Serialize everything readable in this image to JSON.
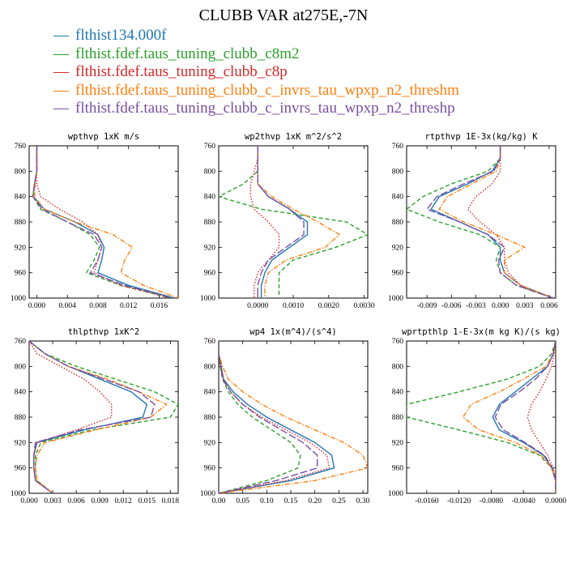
{
  "title": "CLUBB VAR at275E,-7N",
  "legend": [
    {
      "name": "flthist134.000f",
      "color": "#1f77b4",
      "dash": "solid"
    },
    {
      "name": "flthist.fdef.taus_tuning_clubb_c8m2",
      "color": "#2ca02c",
      "dash": "dashed"
    },
    {
      "name": "flthist.fdef.taus_tuning_clubb_c8p",
      "color": "#d62728",
      "dash": "dotted"
    },
    {
      "name": "flthist.fdef.taus_tuning_clubb_c_invrs_tau_wpxp_n2_threshm",
      "color": "#ff7f0e",
      "dash": "dashdot"
    },
    {
      "name": "flthist.fdef.taus_tuning_clubb_c_invrs_tau_wpxp_n2_threshp",
      "color": "#7b4ea3",
      "dash": "longdash"
    }
  ],
  "chart_data": [
    {
      "type": "line",
      "title": "wpthvp  1xK m/s",
      "y": [
        760,
        780,
        800,
        820,
        840,
        860,
        880,
        900,
        920,
        940,
        960,
        980,
        1000
      ],
      "ylim": [
        1000,
        760
      ],
      "yticks": [
        760,
        800,
        840,
        880,
        920,
        960,
        1000
      ],
      "xlim": [
        -0.001,
        0.0185
      ],
      "xticks": [
        0.0,
        0.004,
        0.008,
        0.012,
        0.016
      ],
      "xticklabels": [
        "0.000",
        "0.004",
        "0.008",
        "0.012",
        "0.016"
      ],
      "series": [
        {
          "values": [
            0.0,
            0.0,
            0.0,
            -0.0003,
            -0.0005,
            0.001,
            0.005,
            0.008,
            0.0088,
            0.0085,
            0.008,
            0.012,
            0.018
          ]
        },
        {
          "values": [
            0.0,
            0.0,
            0.0,
            -0.0003,
            -0.0005,
            0.0005,
            0.004,
            0.007,
            0.0082,
            0.0075,
            0.0065,
            0.011,
            0.0175
          ]
        },
        {
          "values": [
            0.0,
            0.0,
            0.0,
            0.0,
            0.0005,
            0.003,
            0.006,
            0.008,
            0.0085,
            0.008,
            0.0075,
            0.011,
            0.0175
          ]
        },
        {
          "values": [
            0.0,
            0.0,
            0.0,
            -0.0002,
            -0.0003,
            0.001,
            0.005,
            0.01,
            0.0125,
            0.0115,
            0.011,
            0.014,
            0.0185
          ]
        },
        {
          "values": [
            0.0,
            0.0,
            0.0,
            -0.0003,
            -0.0005,
            0.0007,
            0.004,
            0.0075,
            0.0085,
            0.008,
            0.007,
            0.0115,
            0.0178
          ]
        }
      ]
    },
    {
      "type": "line",
      "title": "wp2thvp  1xK m^2/s^2",
      "y": [
        760,
        780,
        800,
        820,
        840,
        860,
        880,
        900,
        920,
        940,
        960,
        980,
        1000
      ],
      "ylim": [
        1000,
        760
      ],
      "yticks": [
        760,
        800,
        840,
        880,
        920,
        960,
        1000
      ],
      "xlim": [
        -0.0011,
        0.0031
      ],
      "xticks": [
        0.0,
        0.001,
        0.002,
        0.003
      ],
      "xticklabels": [
        "0.0000",
        "0.0010",
        "0.0020",
        "0.0030"
      ],
      "series": [
        {
          "values": [
            0.0,
            0.0,
            0.0,
            0.0,
            0.0003,
            0.0009,
            0.0014,
            0.0014,
            0.0009,
            0.0004,
            0.0002,
            0.0001,
            0.0001
          ]
        },
        {
          "values": [
            0.0,
            0.0,
            0.0,
            -0.0004,
            -0.0011,
            0.0001,
            0.0025,
            0.0031,
            0.0022,
            0.001,
            0.0006,
            0.0006,
            0.0006
          ]
        },
        {
          "values": [
            0.0,
            0.0,
            -0.0001,
            -0.0002,
            -0.0002,
            -0.0001,
            0.0003,
            0.0006,
            0.0006,
            0.0003,
            0.0,
            -0.0001,
            -0.0001
          ]
        },
        {
          "values": [
            0.0,
            0.0,
            0.0,
            0.0,
            0.0004,
            0.001,
            0.0017,
            0.0023,
            0.0019,
            0.0008,
            0.0003,
            0.0002,
            0.0002
          ]
        },
        {
          "values": [
            0.0,
            0.0,
            0.0,
            0.0,
            0.0003,
            0.0009,
            0.0013,
            0.0013,
            0.0008,
            0.0003,
            0.0001,
            0.0,
            0.0
          ]
        }
      ]
    },
    {
      "type": "line",
      "title": "rtpthvp  1E-3x(kg/kg) K",
      "y": [
        760,
        780,
        800,
        820,
        840,
        860,
        880,
        900,
        920,
        940,
        960,
        980,
        1000
      ],
      "ylim": [
        1000,
        760
      ],
      "yticks": [
        760,
        800,
        840,
        880,
        920,
        960,
        1000
      ],
      "xlim": [
        -0.0115,
        0.0068
      ],
      "xticks": [
        -0.009,
        -0.006,
        -0.003,
        0.0,
        0.003,
        0.006
      ],
      "xticklabels": [
        "-0.009",
        "-0.006",
        "-0.003",
        "0.000",
        "0.003",
        "0.006"
      ],
      "series": [
        {
          "values": [
            0.0,
            0.0,
            -0.001,
            -0.004,
            -0.0075,
            -0.0085,
            -0.005,
            -0.0015,
            0.0,
            0.0,
            0.0005,
            0.0025,
            0.0065
          ]
        },
        {
          "values": [
            0.0,
            0.0,
            -0.0015,
            -0.006,
            -0.0095,
            -0.0115,
            -0.0075,
            -0.0025,
            0.0,
            -0.0005,
            0.0,
            0.002,
            0.0065
          ]
        },
        {
          "values": [
            0.0,
            0.0,
            0.0,
            -0.001,
            -0.003,
            -0.004,
            -0.0025,
            -0.0005,
            0.0005,
            0.0005,
            0.001,
            0.0025,
            0.0065
          ]
        },
        {
          "values": [
            0.0,
            0.0,
            -0.0005,
            -0.0035,
            -0.0065,
            -0.0075,
            -0.0045,
            -0.0005,
            0.003,
            0.0005,
            0.0005,
            0.0025,
            0.0065
          ]
        },
        {
          "values": [
            0.0,
            0.0,
            -0.0008,
            -0.0045,
            -0.0078,
            -0.009,
            -0.005,
            -0.0015,
            0.0005,
            -0.0002,
            0.0,
            0.002,
            0.0065
          ]
        }
      ]
    },
    {
      "type": "line",
      "title": "thlpthvp  1xK^2",
      "y": [
        760,
        780,
        800,
        820,
        840,
        860,
        880,
        900,
        920,
        940,
        960,
        980,
        1000
      ],
      "ylim": [
        1000,
        760
      ],
      "yticks": [
        760,
        800,
        840,
        880,
        920,
        960,
        1000
      ],
      "xlim": [
        0.0,
        0.019
      ],
      "xticks": [
        0.0,
        0.003,
        0.006,
        0.009,
        0.012,
        0.015,
        0.018
      ],
      "xticklabels": [
        "0.000",
        "0.003",
        "0.006",
        "0.009",
        "0.012",
        "0.015",
        "0.018"
      ],
      "series": [
        {
          "values": [
            0.0,
            0.002,
            0.005,
            0.009,
            0.013,
            0.015,
            0.0145,
            0.007,
            0.001,
            0.0006,
            0.0006,
            0.0008,
            0.003
          ]
        },
        {
          "values": [
            0.0,
            0.002,
            0.006,
            0.011,
            0.016,
            0.019,
            0.018,
            0.008,
            0.0015,
            0.0008,
            0.0008,
            0.001,
            0.003
          ]
        },
        {
          "values": [
            0.0,
            0.001,
            0.004,
            0.007,
            0.009,
            0.0105,
            0.0105,
            0.006,
            0.001,
            0.0006,
            0.0006,
            0.0008,
            0.003
          ]
        },
        {
          "values": [
            0.0,
            0.002,
            0.005,
            0.01,
            0.014,
            0.0175,
            0.0155,
            0.0085,
            0.002,
            0.001,
            0.0008,
            0.001,
            0.003
          ]
        },
        {
          "values": [
            0.0,
            0.002,
            0.005,
            0.0095,
            0.014,
            0.016,
            0.0155,
            0.0065,
            0.0008,
            0.0006,
            0.0006,
            0.0008,
            0.003
          ]
        }
      ]
    },
    {
      "type": "line",
      "title": "wp4  1x(m^4)/(s^4)",
      "y": [
        760,
        780,
        800,
        820,
        840,
        860,
        880,
        900,
        920,
        940,
        960,
        980,
        1000
      ],
      "ylim": [
        1000,
        760
      ],
      "yticks": [
        760,
        800,
        840,
        880,
        920,
        960,
        1000
      ],
      "xlim": [
        0.0,
        0.31
      ],
      "xticks": [
        0.0,
        0.05,
        0.1,
        0.15,
        0.2,
        0.25,
        0.3
      ],
      "xticklabels": [
        "0.00",
        "0.05",
        "0.10",
        "0.15",
        "0.20",
        "0.25",
        "0.30"
      ],
      "series": [
        {
          "values": [
            0.0,
            0.0,
            0.005,
            0.01,
            0.03,
            0.06,
            0.1,
            0.15,
            0.2,
            0.235,
            0.24,
            0.15,
            0.0
          ]
        },
        {
          "values": [
            0.0,
            0.0,
            0.003,
            0.008,
            0.02,
            0.04,
            0.07,
            0.11,
            0.15,
            0.17,
            0.165,
            0.1,
            0.0
          ]
        },
        {
          "values": [
            0.0,
            0.0,
            0.005,
            0.01,
            0.025,
            0.05,
            0.09,
            0.14,
            0.19,
            0.225,
            0.23,
            0.14,
            0.0
          ]
        },
        {
          "values": [
            0.0,
            0.0,
            0.008,
            0.02,
            0.05,
            0.09,
            0.14,
            0.2,
            0.26,
            0.3,
            0.31,
            0.2,
            0.0
          ]
        },
        {
          "values": [
            0.0,
            0.0,
            0.004,
            0.008,
            0.025,
            0.05,
            0.085,
            0.13,
            0.175,
            0.205,
            0.205,
            0.12,
            0.0
          ]
        }
      ]
    },
    {
      "type": "line",
      "title": "wprtpthlp  1-E-3x(m kg K)/(s kg)",
      "y": [
        760,
        780,
        800,
        820,
        840,
        860,
        880,
        900,
        920,
        940,
        960,
        980,
        1000
      ],
      "ylim": [
        1000,
        760
      ],
      "yticks": [
        760,
        800,
        840,
        880,
        920,
        960,
        1000
      ],
      "xlim": [
        -0.0185,
        0.0
      ],
      "xticks": [
        -0.016,
        -0.012,
        -0.008,
        -0.004,
        0.0
      ],
      "xticklabels": [
        "-0.0160",
        "-0.0120",
        "-0.0080",
        "-0.0040",
        "0.0000"
      ],
      "series": [
        {
          "values": [
            0.0,
            -0.0003,
            -0.001,
            -0.003,
            -0.005,
            -0.007,
            -0.0078,
            -0.007,
            -0.004,
            -0.0015,
            -0.0005,
            0.0,
            0.0
          ]
        },
        {
          "values": [
            0.0,
            -0.0005,
            -0.002,
            -0.006,
            -0.012,
            -0.0185,
            -0.0185,
            -0.012,
            -0.006,
            -0.002,
            -0.0005,
            0.0,
            0.0
          ]
        },
        {
          "values": [
            0.0,
            -0.0002,
            -0.0005,
            -0.0012,
            -0.002,
            -0.003,
            -0.0035,
            -0.003,
            -0.002,
            -0.001,
            -0.0003,
            0.0,
            0.0
          ]
        },
        {
          "values": [
            0.0,
            -0.0003,
            -0.0012,
            -0.004,
            -0.007,
            -0.0105,
            -0.0115,
            -0.0095,
            -0.005,
            -0.0018,
            -0.0005,
            0.0,
            0.0
          ]
        },
        {
          "values": [
            0.0,
            -0.0003,
            -0.001,
            -0.0025,
            -0.0045,
            -0.0068,
            -0.0075,
            -0.0065,
            -0.0038,
            -0.0014,
            -0.0004,
            0.0,
            0.0
          ]
        }
      ]
    }
  ]
}
